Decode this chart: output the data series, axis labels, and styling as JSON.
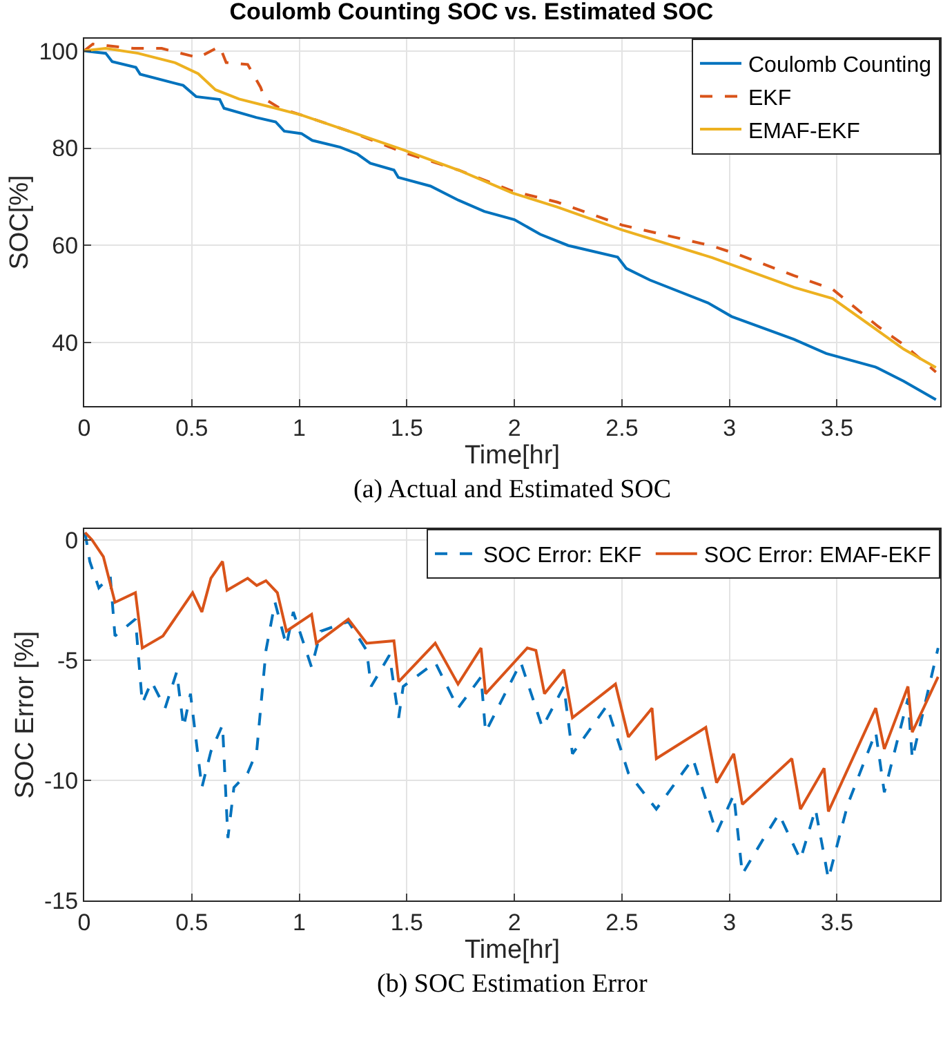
{
  "chart_data": [
    {
      "type": "line",
      "title": "Coulomb Counting SOC vs. Estimated SOC",
      "xlabel": "Time[hr]",
      "ylabel": "SOC[%]",
      "annotations": [
        "(a) Actual and Estimated SOC"
      ],
      "xlim": [
        0,
        3.98
      ],
      "xticks": [
        0,
        0.5,
        1,
        1.5,
        2,
        2.5,
        3,
        3.5
      ],
      "ylim": [
        27,
        102.5
      ],
      "yticks": [
        40,
        60,
        80,
        100
      ],
      "grid": true,
      "legend": "top right",
      "series": [
        {
          "name": "Coulomb Counting",
          "color": "#0072bd",
          "line_style": "solid",
          "x": [
            0,
            0.1,
            0.13,
            0.24,
            0.26,
            0.46,
            0.52,
            0.63,
            0.65,
            0.8,
            0.89,
            0.93,
            1.01,
            1.06,
            1.19,
            1.27,
            1.33,
            1.44,
            1.46,
            1.61,
            1.74,
            1.86,
            2.0,
            2.12,
            2.25,
            2.48,
            2.52,
            2.63,
            2.9,
            3.01,
            3.3,
            3.45,
            3.68,
            3.81,
            3.96
          ],
          "values": [
            100,
            99.5,
            97.8,
            96.6,
            95.2,
            92.9,
            90.6,
            90,
            88.2,
            86.3,
            85.4,
            83.5,
            83,
            81.6,
            80.2,
            78.8,
            76.9,
            75.5,
            74,
            72.2,
            69.3,
            67,
            65.3,
            62.3,
            60,
            57.6,
            55.3,
            52.9,
            48.2,
            45.4,
            40.7,
            37.8,
            35,
            32.1,
            28.3
          ]
        },
        {
          "name": "EKF",
          "color": "#d95319",
          "line_style": "dashed",
          "x": [
            0,
            0.04,
            0.14,
            0.23,
            0.36,
            0.53,
            0.63,
            0.66,
            0.76,
            0.82,
            0.84,
            0.91,
            1.01,
            1.23,
            1.48,
            1.74,
            1.99,
            2.2,
            2.5,
            2.92,
            3.05,
            3.3,
            3.48,
            3.69,
            3.81,
            3.96
          ],
          "values": [
            100,
            101.4,
            100.9,
            100.5,
            100.5,
            98.6,
            100.9,
            97.6,
            97.2,
            92.5,
            90.1,
            88.2,
            86.8,
            83.5,
            79.2,
            75.5,
            71.2,
            68.9,
            64.2,
            59.9,
            58,
            53.8,
            51,
            43.4,
            39.6,
            34
          ]
        },
        {
          "name": "EMAF-EKF",
          "color": "#edb120",
          "line_style": "solid",
          "x": [
            0,
            0.1,
            0.25,
            0.42,
            0.53,
            0.61,
            0.72,
            0.89,
            1.01,
            1.23,
            1.48,
            1.74,
            1.99,
            2.2,
            2.5,
            2.92,
            3.3,
            3.48,
            3.69,
            3.81,
            3.96
          ],
          "values": [
            100,
            100.5,
            99.5,
            97.6,
            95.3,
            92,
            90.1,
            88.2,
            86.8,
            83.5,
            79.7,
            75.5,
            70.8,
            67.9,
            63.2,
            57.5,
            51.4,
            49.1,
            42.5,
            38.7,
            34.9
          ]
        }
      ]
    },
    {
      "type": "line",
      "xlabel": "Time[hr]",
      "ylabel": "SOC Error [%]",
      "annotations": [
        "(b) SOC Estimation Error"
      ],
      "xlim": [
        0,
        3.98
      ],
      "xticks": [
        0,
        0.5,
        1,
        1.5,
        2,
        2.5,
        3,
        3.5
      ],
      "ylim": [
        -15,
        0.45
      ],
      "yticks": [
        -15,
        -10,
        -5,
        0
      ],
      "grid": true,
      "legend": "top right",
      "series": [
        {
          "name": "SOC Error: EKF",
          "color": "#0072bd",
          "line_style": "dashed",
          "x": [
            0.004,
            0.026,
            0.068,
            0.121,
            0.143,
            0.238,
            0.27,
            0.313,
            0.376,
            0.43,
            0.462,
            0.494,
            0.547,
            0.589,
            0.643,
            0.668,
            0.696,
            0.76,
            0.802,
            0.845,
            0.887,
            0.94,
            0.972,
            1.057,
            1.1,
            1.228,
            1.313,
            1.334,
            1.419,
            1.462,
            1.483,
            1.632,
            1.738,
            1.845,
            1.866,
            2.03,
            2.13,
            2.23,
            2.27,
            2.43,
            2.53,
            2.66,
            2.83,
            2.94,
            3.02,
            3.06,
            3.16,
            3.23,
            3.33,
            3.4,
            3.46,
            3.55,
            3.68,
            3.72,
            3.83,
            3.85,
            3.97
          ],
          "values": [
            0.3,
            -0.9,
            -2,
            -1.5,
            -4,
            -3.3,
            -6.8,
            -5.9,
            -7,
            -5.5,
            -7.8,
            -6.4,
            -10.3,
            -8.8,
            -7.7,
            -12.4,
            -10.3,
            -9.7,
            -8.8,
            -4.6,
            -2.6,
            -4.4,
            -3,
            -5.3,
            -3.8,
            -3.4,
            -4.6,
            -6.1,
            -4.8,
            -7.4,
            -6.1,
            -5.1,
            -7,
            -5.7,
            -8,
            -5.1,
            -7.8,
            -6.1,
            -8.9,
            -6.9,
            -9.7,
            -11.2,
            -9.1,
            -12.2,
            -10.6,
            -13.9,
            -12.4,
            -11.4,
            -13.3,
            -11.2,
            -14.1,
            -11,
            -8,
            -10.5,
            -6.6,
            -9.1,
            -4.5
          ]
        },
        {
          "name": "SOC Error: EMAF-EKF",
          "color": "#d95319",
          "line_style": "solid",
          "x": [
            0.004,
            0.036,
            0.089,
            0.143,
            0.238,
            0.27,
            0.366,
            0.504,
            0.547,
            0.589,
            0.643,
            0.664,
            0.76,
            0.802,
            0.845,
            0.898,
            0.94,
            1.057,
            1.079,
            1.228,
            1.313,
            1.44,
            1.462,
            1.632,
            1.738,
            1.845,
            1.866,
            2.06,
            2.1,
            2.14,
            2.23,
            2.27,
            2.47,
            2.53,
            2.64,
            2.66,
            2.89,
            2.94,
            3.02,
            3.06,
            3.29,
            3.33,
            3.44,
            3.46,
            3.68,
            3.72,
            3.83,
            3.85,
            3.97
          ],
          "values": [
            0.3,
            0,
            -0.7,
            -2.6,
            -2.2,
            -4.5,
            -4,
            -2.2,
            -3,
            -1.6,
            -0.9,
            -2.1,
            -1.6,
            -1.9,
            -1.7,
            -2.2,
            -3.8,
            -3.1,
            -4.3,
            -3.3,
            -4.3,
            -4.2,
            -5.9,
            -4.3,
            -6,
            -4.5,
            -6.4,
            -4.5,
            -4.6,
            -6.4,
            -5.4,
            -7.4,
            -6,
            -8.2,
            -7,
            -9.1,
            -7.8,
            -10.1,
            -8.9,
            -11,
            -9.1,
            -11.2,
            -9.5,
            -11.3,
            -7,
            -8.7,
            -6.1,
            -8,
            -5.7
          ]
        }
      ]
    }
  ]
}
